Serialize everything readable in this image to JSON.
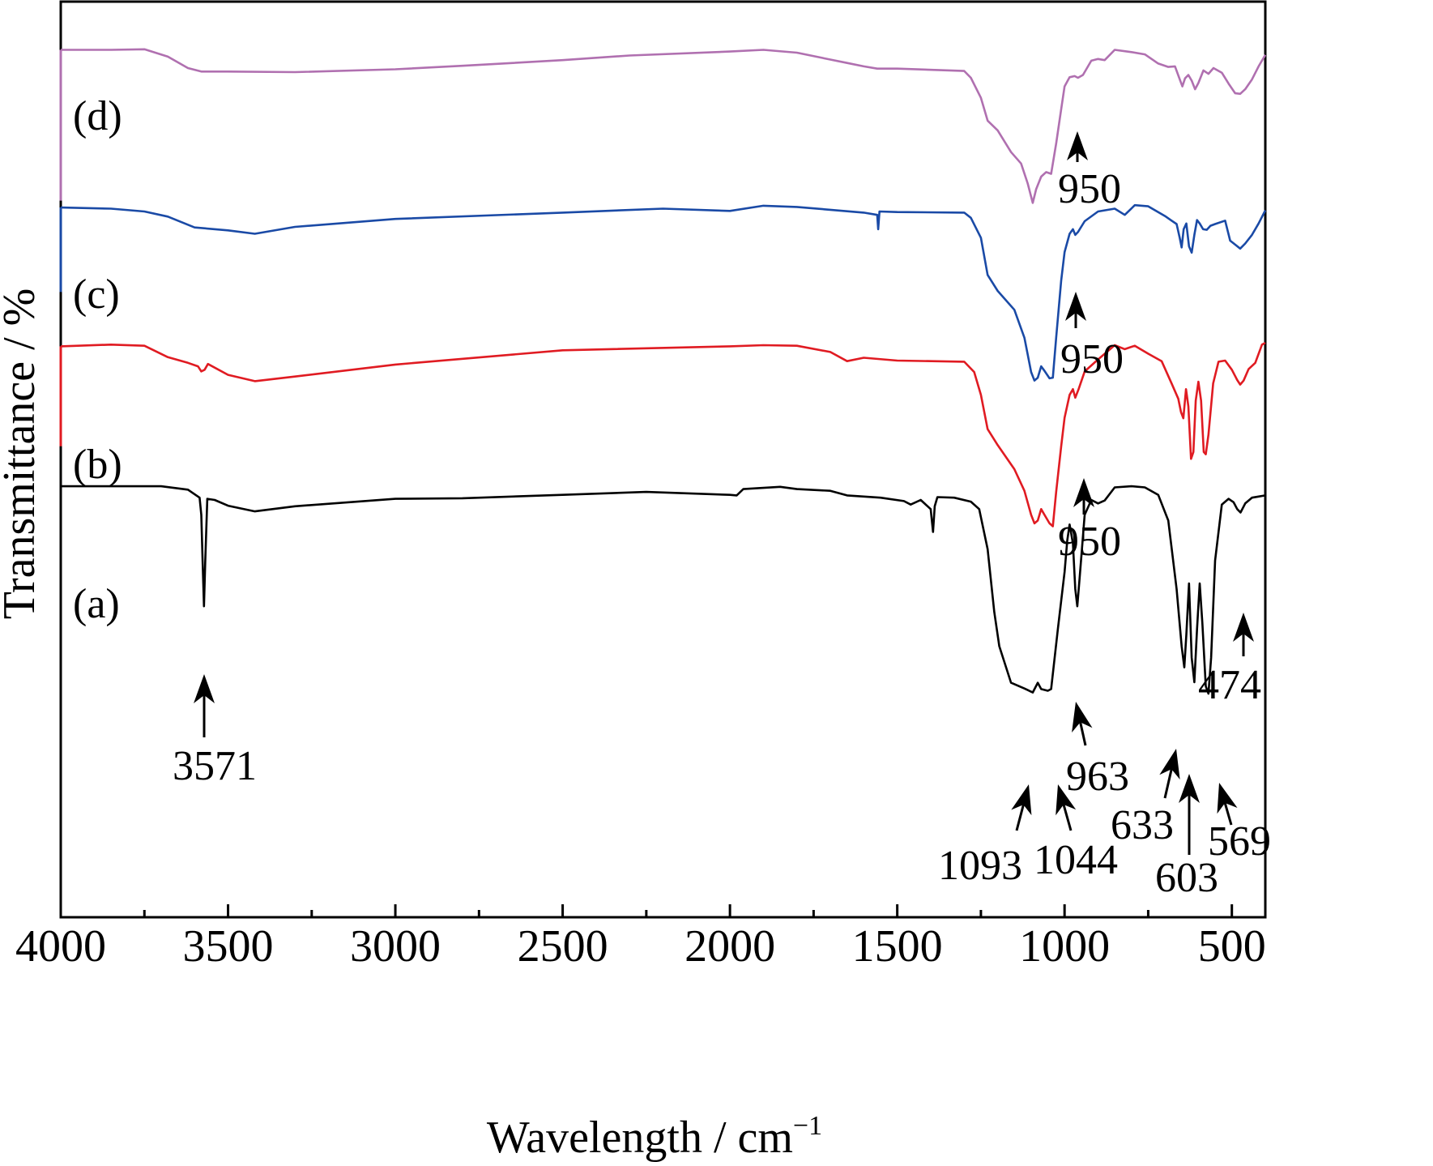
{
  "chart_data": {
    "type": "line",
    "title": "",
    "xlabel": "Wavelength / cm",
    "xlabel_sup": "−1",
    "ylabel": "Transmittance / %",
    "xlim": [
      4000,
      400
    ],
    "x_reversed": true,
    "xticks": [
      4000,
      3500,
      3000,
      2500,
      2000,
      1500,
      1000,
      500
    ],
    "xtick_labels": [
      "4000",
      "3500",
      "3000",
      "2500",
      "2000",
      "1500",
      "1000",
      "500"
    ],
    "ylim": [
      0,
      100
    ],
    "yticks_shown": false,
    "grid": false,
    "legend": "none; series tagged by inline labels at left",
    "series": [
      {
        "name": "(a)",
        "color": "#000000",
        "points": [
          [
            4000,
            78
          ],
          [
            3850,
            78
          ],
          [
            3700,
            78
          ],
          [
            3620,
            77.4
          ],
          [
            3585,
            76
          ],
          [
            3580,
            73
          ],
          [
            3576,
            65
          ],
          [
            3572,
            57
          ],
          [
            3568,
            65
          ],
          [
            3562,
            75.8
          ],
          [
            3540,
            75.6
          ],
          [
            3500,
            74.6
          ],
          [
            3420,
            73.6
          ],
          [
            3300,
            74.5
          ],
          [
            3000,
            75.8
          ],
          [
            2800,
            75.9
          ],
          [
            2500,
            76.5
          ],
          [
            2250,
            77
          ],
          [
            2000,
            76.5
          ],
          [
            1980,
            76.4
          ],
          [
            1960,
            77.5
          ],
          [
            1850,
            77.9
          ],
          [
            1800,
            77.5
          ],
          [
            1700,
            77.2
          ],
          [
            1650,
            76.4
          ],
          [
            1550,
            76
          ],
          [
            1480,
            75.4
          ],
          [
            1460,
            74.8
          ],
          [
            1430,
            75.6
          ],
          [
            1400,
            74
          ],
          [
            1393,
            70
          ],
          [
            1388,
            74.5
          ],
          [
            1380,
            76.1
          ],
          [
            1330,
            76
          ],
          [
            1280,
            75.3
          ],
          [
            1255,
            74
          ],
          [
            1230,
            67
          ],
          [
            1210,
            56
          ],
          [
            1195,
            50
          ],
          [
            1160,
            43.6
          ],
          [
            1120,
            42.6
          ],
          [
            1095,
            41.9
          ],
          [
            1080,
            43.6
          ],
          [
            1070,
            42.5
          ],
          [
            1050,
            42.2
          ],
          [
            1040,
            42.5
          ],
          [
            1020,
            53
          ],
          [
            1000,
            63
          ],
          [
            992,
            68.5
          ],
          [
            985,
            71.3
          ],
          [
            975,
            68
          ],
          [
            968,
            60
          ],
          [
            962,
            57
          ],
          [
            955,
            62
          ],
          [
            940,
            73
          ],
          [
            920,
            75.6
          ],
          [
            900,
            75
          ],
          [
            880,
            75.5
          ],
          [
            850,
            77.8
          ],
          [
            800,
            78
          ],
          [
            760,
            77.8
          ],
          [
            720,
            76.5
          ],
          [
            690,
            72
          ],
          [
            665,
            60
          ],
          [
            650,
            50
          ],
          [
            642,
            46.3
          ],
          [
            636,
            52
          ],
          [
            628,
            61
          ],
          [
            620,
            48
          ],
          [
            612,
            43.7
          ],
          [
            604,
            53
          ],
          [
            596,
            61
          ],
          [
            588,
            54
          ],
          [
            578,
            43
          ],
          [
            570,
            41.7
          ],
          [
            562,
            48
          ],
          [
            550,
            65
          ],
          [
            530,
            74.8
          ],
          [
            510,
            75.8
          ],
          [
            495,
            75.2
          ],
          [
            484,
            74
          ],
          [
            474,
            73.4
          ],
          [
            460,
            75
          ],
          [
            440,
            76
          ],
          [
            420,
            76.2
          ],
          [
            400,
            76.4
          ]
        ]
      },
      {
        "name": "(b)",
        "color": "#e01b22",
        "points": [
          [
            4000,
            102.5
          ],
          [
            3850,
            102.8
          ],
          [
            3750,
            102.6
          ],
          [
            3680,
            100.6
          ],
          [
            3620,
            99.6
          ],
          [
            3590,
            99
          ],
          [
            3580,
            98.1
          ],
          [
            3570,
            98.4
          ],
          [
            3560,
            99.4
          ],
          [
            3500,
            97.5
          ],
          [
            3420,
            96.4
          ],
          [
            3300,
            97.2
          ],
          [
            3000,
            99.3
          ],
          [
            2500,
            101.8
          ],
          [
            2000,
            102.5
          ],
          [
            1900,
            102.7
          ],
          [
            1800,
            102.6
          ],
          [
            1700,
            101.5
          ],
          [
            1650,
            99.9
          ],
          [
            1600,
            100.5
          ],
          [
            1500,
            100
          ],
          [
            1300,
            99.8
          ],
          [
            1270,
            98
          ],
          [
            1250,
            94
          ],
          [
            1230,
            88
          ],
          [
            1200,
            85.2
          ],
          [
            1150,
            81
          ],
          [
            1120,
            77.2
          ],
          [
            1100,
            73
          ],
          [
            1090,
            71.5
          ],
          [
            1080,
            72
          ],
          [
            1070,
            74
          ],
          [
            1060,
            73
          ],
          [
            1045,
            71.5
          ],
          [
            1035,
            71
          ],
          [
            1025,
            77
          ],
          [
            1010,
            85
          ],
          [
            1000,
            90
          ],
          [
            985,
            94
          ],
          [
            975,
            95
          ],
          [
            968,
            93.5
          ],
          [
            958,
            95
          ],
          [
            940,
            98.1
          ],
          [
            900,
            100.2
          ],
          [
            850,
            102.7
          ],
          [
            820,
            102
          ],
          [
            790,
            102.6
          ],
          [
            750,
            101.2
          ],
          [
            710,
            99.9
          ],
          [
            680,
            96
          ],
          [
            660,
            93.3
          ],
          [
            652,
            91
          ],
          [
            645,
            89.9
          ],
          [
            637,
            95
          ],
          [
            630,
            92
          ],
          [
            622,
            82.8
          ],
          [
            615,
            84
          ],
          [
            608,
            93
          ],
          [
            600,
            96.3
          ],
          [
            592,
            93
          ],
          [
            584,
            84
          ],
          [
            578,
            83.6
          ],
          [
            570,
            87
          ],
          [
            556,
            96
          ],
          [
            540,
            99.8
          ],
          [
            520,
            100
          ],
          [
            500,
            98.4
          ],
          [
            484,
            96.6
          ],
          [
            475,
            95.8
          ],
          [
            465,
            96.5
          ],
          [
            450,
            98.5
          ],
          [
            430,
            99.6
          ],
          [
            410,
            102.8
          ],
          [
            400,
            103.1
          ]
        ]
      },
      {
        "name": "(c)",
        "color": "#1a4aa6",
        "points": [
          [
            4000,
            126.8
          ],
          [
            3850,
            126.6
          ],
          [
            3750,
            126.1
          ],
          [
            3680,
            125.2
          ],
          [
            3600,
            123.3
          ],
          [
            3500,
            122.8
          ],
          [
            3420,
            122.2
          ],
          [
            3300,
            123.4
          ],
          [
            3000,
            124.8
          ],
          [
            2500,
            125.9
          ],
          [
            2200,
            126.6
          ],
          [
            2000,
            126.2
          ],
          [
            1900,
            127.1
          ],
          [
            1800,
            126.9
          ],
          [
            1700,
            126.4
          ],
          [
            1600,
            125.9
          ],
          [
            1560,
            125.5
          ],
          [
            1557,
            123
          ],
          [
            1553,
            126.1
          ],
          [
            1500,
            126
          ],
          [
            1300,
            125.9
          ],
          [
            1280,
            125
          ],
          [
            1250,
            121.5
          ],
          [
            1230,
            115
          ],
          [
            1200,
            112.2
          ],
          [
            1150,
            108.9
          ],
          [
            1120,
            104
          ],
          [
            1100,
            98
          ],
          [
            1090,
            96.5
          ],
          [
            1080,
            97
          ],
          [
            1070,
            99
          ],
          [
            1060,
            98.2
          ],
          [
            1045,
            96.9
          ],
          [
            1035,
            97
          ],
          [
            1025,
            104
          ],
          [
            1010,
            114
          ],
          [
            1000,
            119
          ],
          [
            985,
            122.2
          ],
          [
            975,
            123
          ],
          [
            968,
            122
          ],
          [
            960,
            122.5
          ],
          [
            940,
            124.4
          ],
          [
            900,
            126.1
          ],
          [
            850,
            126.6
          ],
          [
            820,
            125.5
          ],
          [
            790,
            127.2
          ],
          [
            750,
            127
          ],
          [
            700,
            125.3
          ],
          [
            680,
            124.5
          ],
          [
            665,
            123.9
          ],
          [
            656,
            121.5
          ],
          [
            650,
            119.8
          ],
          [
            644,
            123
          ],
          [
            636,
            124
          ],
          [
            628,
            120
          ],
          [
            620,
            118.9
          ],
          [
            612,
            122
          ],
          [
            604,
            124.6
          ],
          [
            596,
            124
          ],
          [
            586,
            123
          ],
          [
            575,
            122.9
          ],
          [
            564,
            123.6
          ],
          [
            550,
            123.9
          ],
          [
            520,
            124.5
          ],
          [
            505,
            121
          ],
          [
            490,
            120.3
          ],
          [
            475,
            119.6
          ],
          [
            460,
            120.5
          ],
          [
            440,
            122
          ],
          [
            420,
            124
          ],
          [
            400,
            126.3
          ]
        ]
      },
      {
        "name": "(d)",
        "color": "#b070b0",
        "points": [
          [
            4000,
            154.4
          ],
          [
            3850,
            154.4
          ],
          [
            3750,
            154.5
          ],
          [
            3680,
            153.2
          ],
          [
            3620,
            151.2
          ],
          [
            3580,
            150.6
          ],
          [
            3500,
            150.6
          ],
          [
            3300,
            150.5
          ],
          [
            3000,
            151
          ],
          [
            2800,
            151.6
          ],
          [
            2500,
            152.6
          ],
          [
            2300,
            153.4
          ],
          [
            2000,
            154.1
          ],
          [
            1900,
            154.4
          ],
          [
            1800,
            153.9
          ],
          [
            1700,
            152.7
          ],
          [
            1650,
            152.1
          ],
          [
            1600,
            151.5
          ],
          [
            1560,
            151.1
          ],
          [
            1500,
            151.1
          ],
          [
            1300,
            150.7
          ],
          [
            1280,
            149.5
          ],
          [
            1250,
            146
          ],
          [
            1230,
            142
          ],
          [
            1200,
            140.3
          ],
          [
            1160,
            136.5
          ],
          [
            1130,
            134.5
          ],
          [
            1110,
            131
          ],
          [
            1095,
            127.6
          ],
          [
            1085,
            130
          ],
          [
            1070,
            132.2
          ],
          [
            1055,
            133
          ],
          [
            1040,
            132.7
          ],
          [
            1025,
            138
          ],
          [
            1010,
            144
          ],
          [
            1000,
            148
          ],
          [
            985,
            149.6
          ],
          [
            970,
            149.8
          ],
          [
            960,
            149.5
          ],
          [
            945,
            150
          ],
          [
            920,
            152.5
          ],
          [
            900,
            152.8
          ],
          [
            880,
            152.6
          ],
          [
            850,
            154.4
          ],
          [
            800,
            154
          ],
          [
            760,
            153.6
          ],
          [
            720,
            152
          ],
          [
            690,
            151.4
          ],
          [
            670,
            151.5
          ],
          [
            655,
            149.1
          ],
          [
            648,
            148
          ],
          [
            640,
            149.4
          ],
          [
            630,
            150
          ],
          [
            620,
            149
          ],
          [
            610,
            147.5
          ],
          [
            600,
            148.6
          ],
          [
            585,
            150.8
          ],
          [
            570,
            150.2
          ],
          [
            555,
            151.2
          ],
          [
            530,
            150.4
          ],
          [
            510,
            148.5
          ],
          [
            490,
            146.8
          ],
          [
            475,
            146.7
          ],
          [
            460,
            147.5
          ],
          [
            440,
            149.2
          ],
          [
            420,
            151.5
          ],
          [
            400,
            153.5
          ]
        ]
      }
    ],
    "series_labels": [
      "(a)",
      "(b)",
      "(c)",
      "(d)"
    ],
    "annotations": [
      {
        "series": "(a)",
        "text": "3571",
        "x": 3571
      },
      {
        "series": "(a)",
        "text": "1093",
        "x": 1093
      },
      {
        "series": "(a)",
        "text": "1044",
        "x": 1044
      },
      {
        "series": "(a)",
        "text": "963",
        "x": 963
      },
      {
        "series": "(a)",
        "text": "633",
        "x": 633
      },
      {
        "series": "(a)",
        "text": "603",
        "x": 603
      },
      {
        "series": "(a)",
        "text": "569",
        "x": 569
      },
      {
        "series": "(a)",
        "text": "474",
        "x": 474
      },
      {
        "series": "(b)",
        "text": "950",
        "x": 950
      },
      {
        "series": "(c)",
        "text": "950",
        "x": 950
      },
      {
        "series": "(d)",
        "text": "950",
        "x": 950
      }
    ]
  }
}
